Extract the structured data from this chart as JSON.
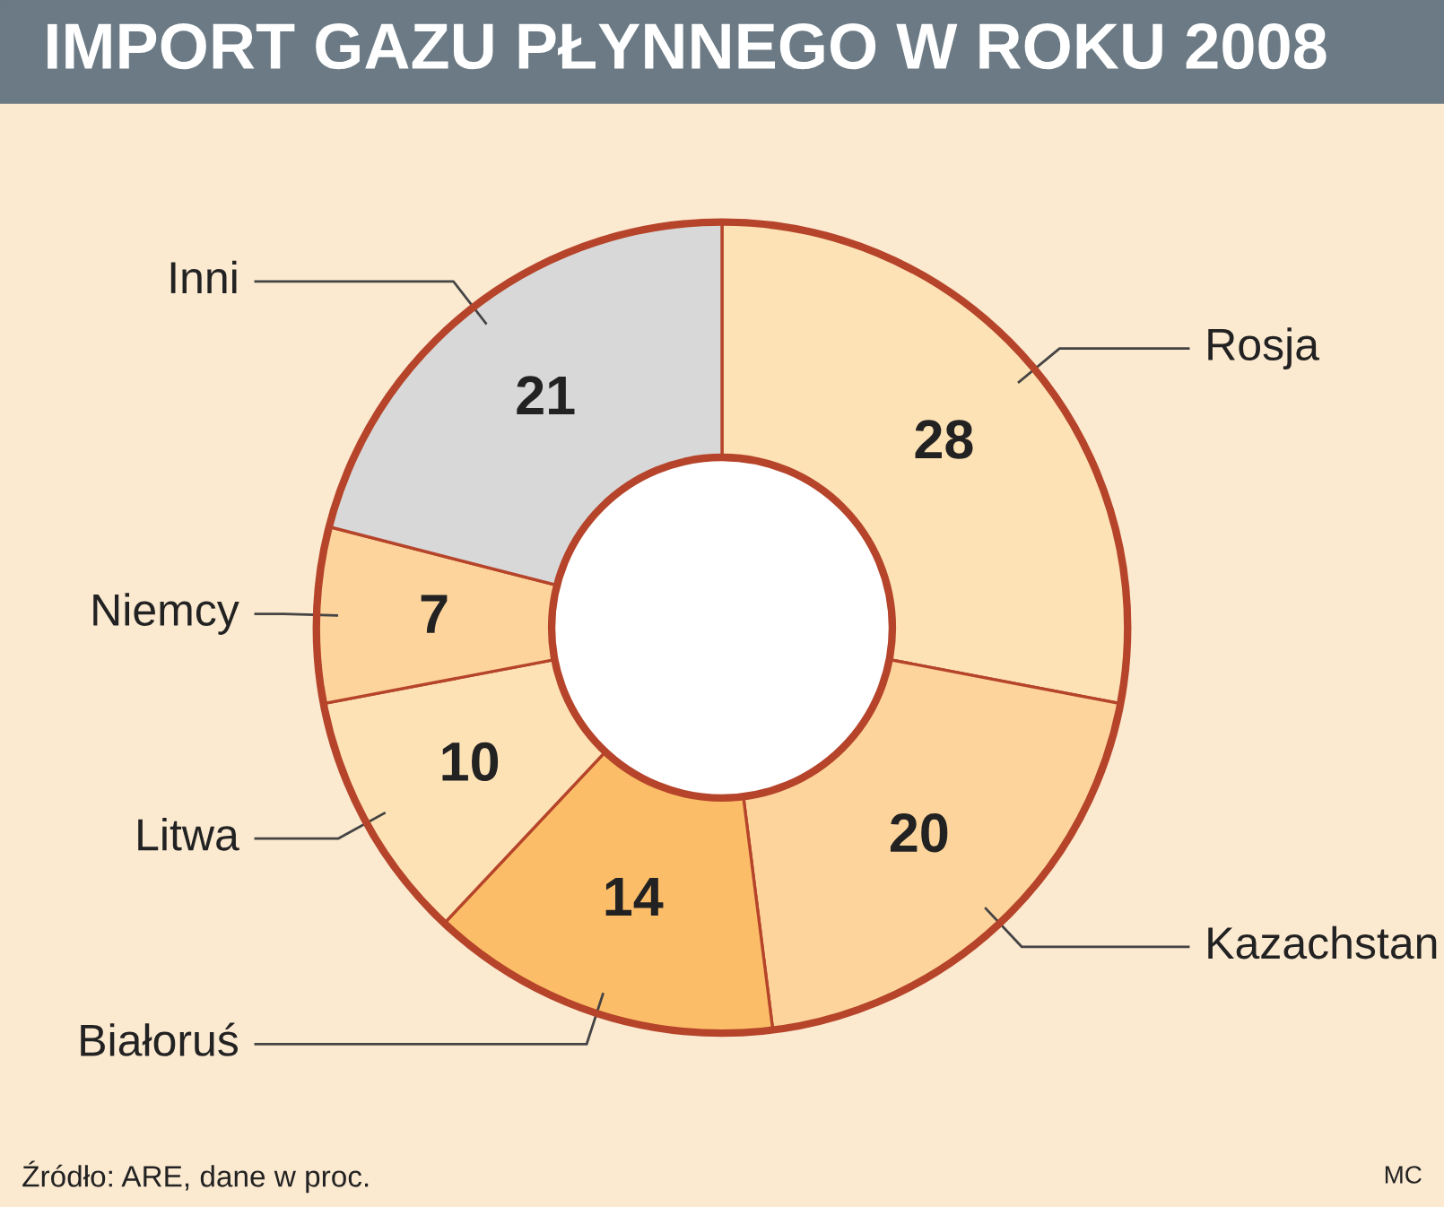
{
  "chart_data": {
    "type": "donut",
    "title": "IMPORT GAZU PŁYNNEGO W ROKU 2008",
    "categories": [
      "Rosja",
      "Kazachstan",
      "Białoruś",
      "Litwa",
      "Niemcy",
      "Inni"
    ],
    "values": [
      28,
      20,
      14,
      10,
      7,
      21
    ],
    "colors": [
      "#fde2b5",
      "#fdd59c",
      "#fbbd68",
      "#fde2b5",
      "#fdd59c",
      "#d8d8d8"
    ],
    "data_labels": true,
    "annotations": [
      "Źródło: ARE, dane w proc.",
      "MC"
    ]
  }
}
